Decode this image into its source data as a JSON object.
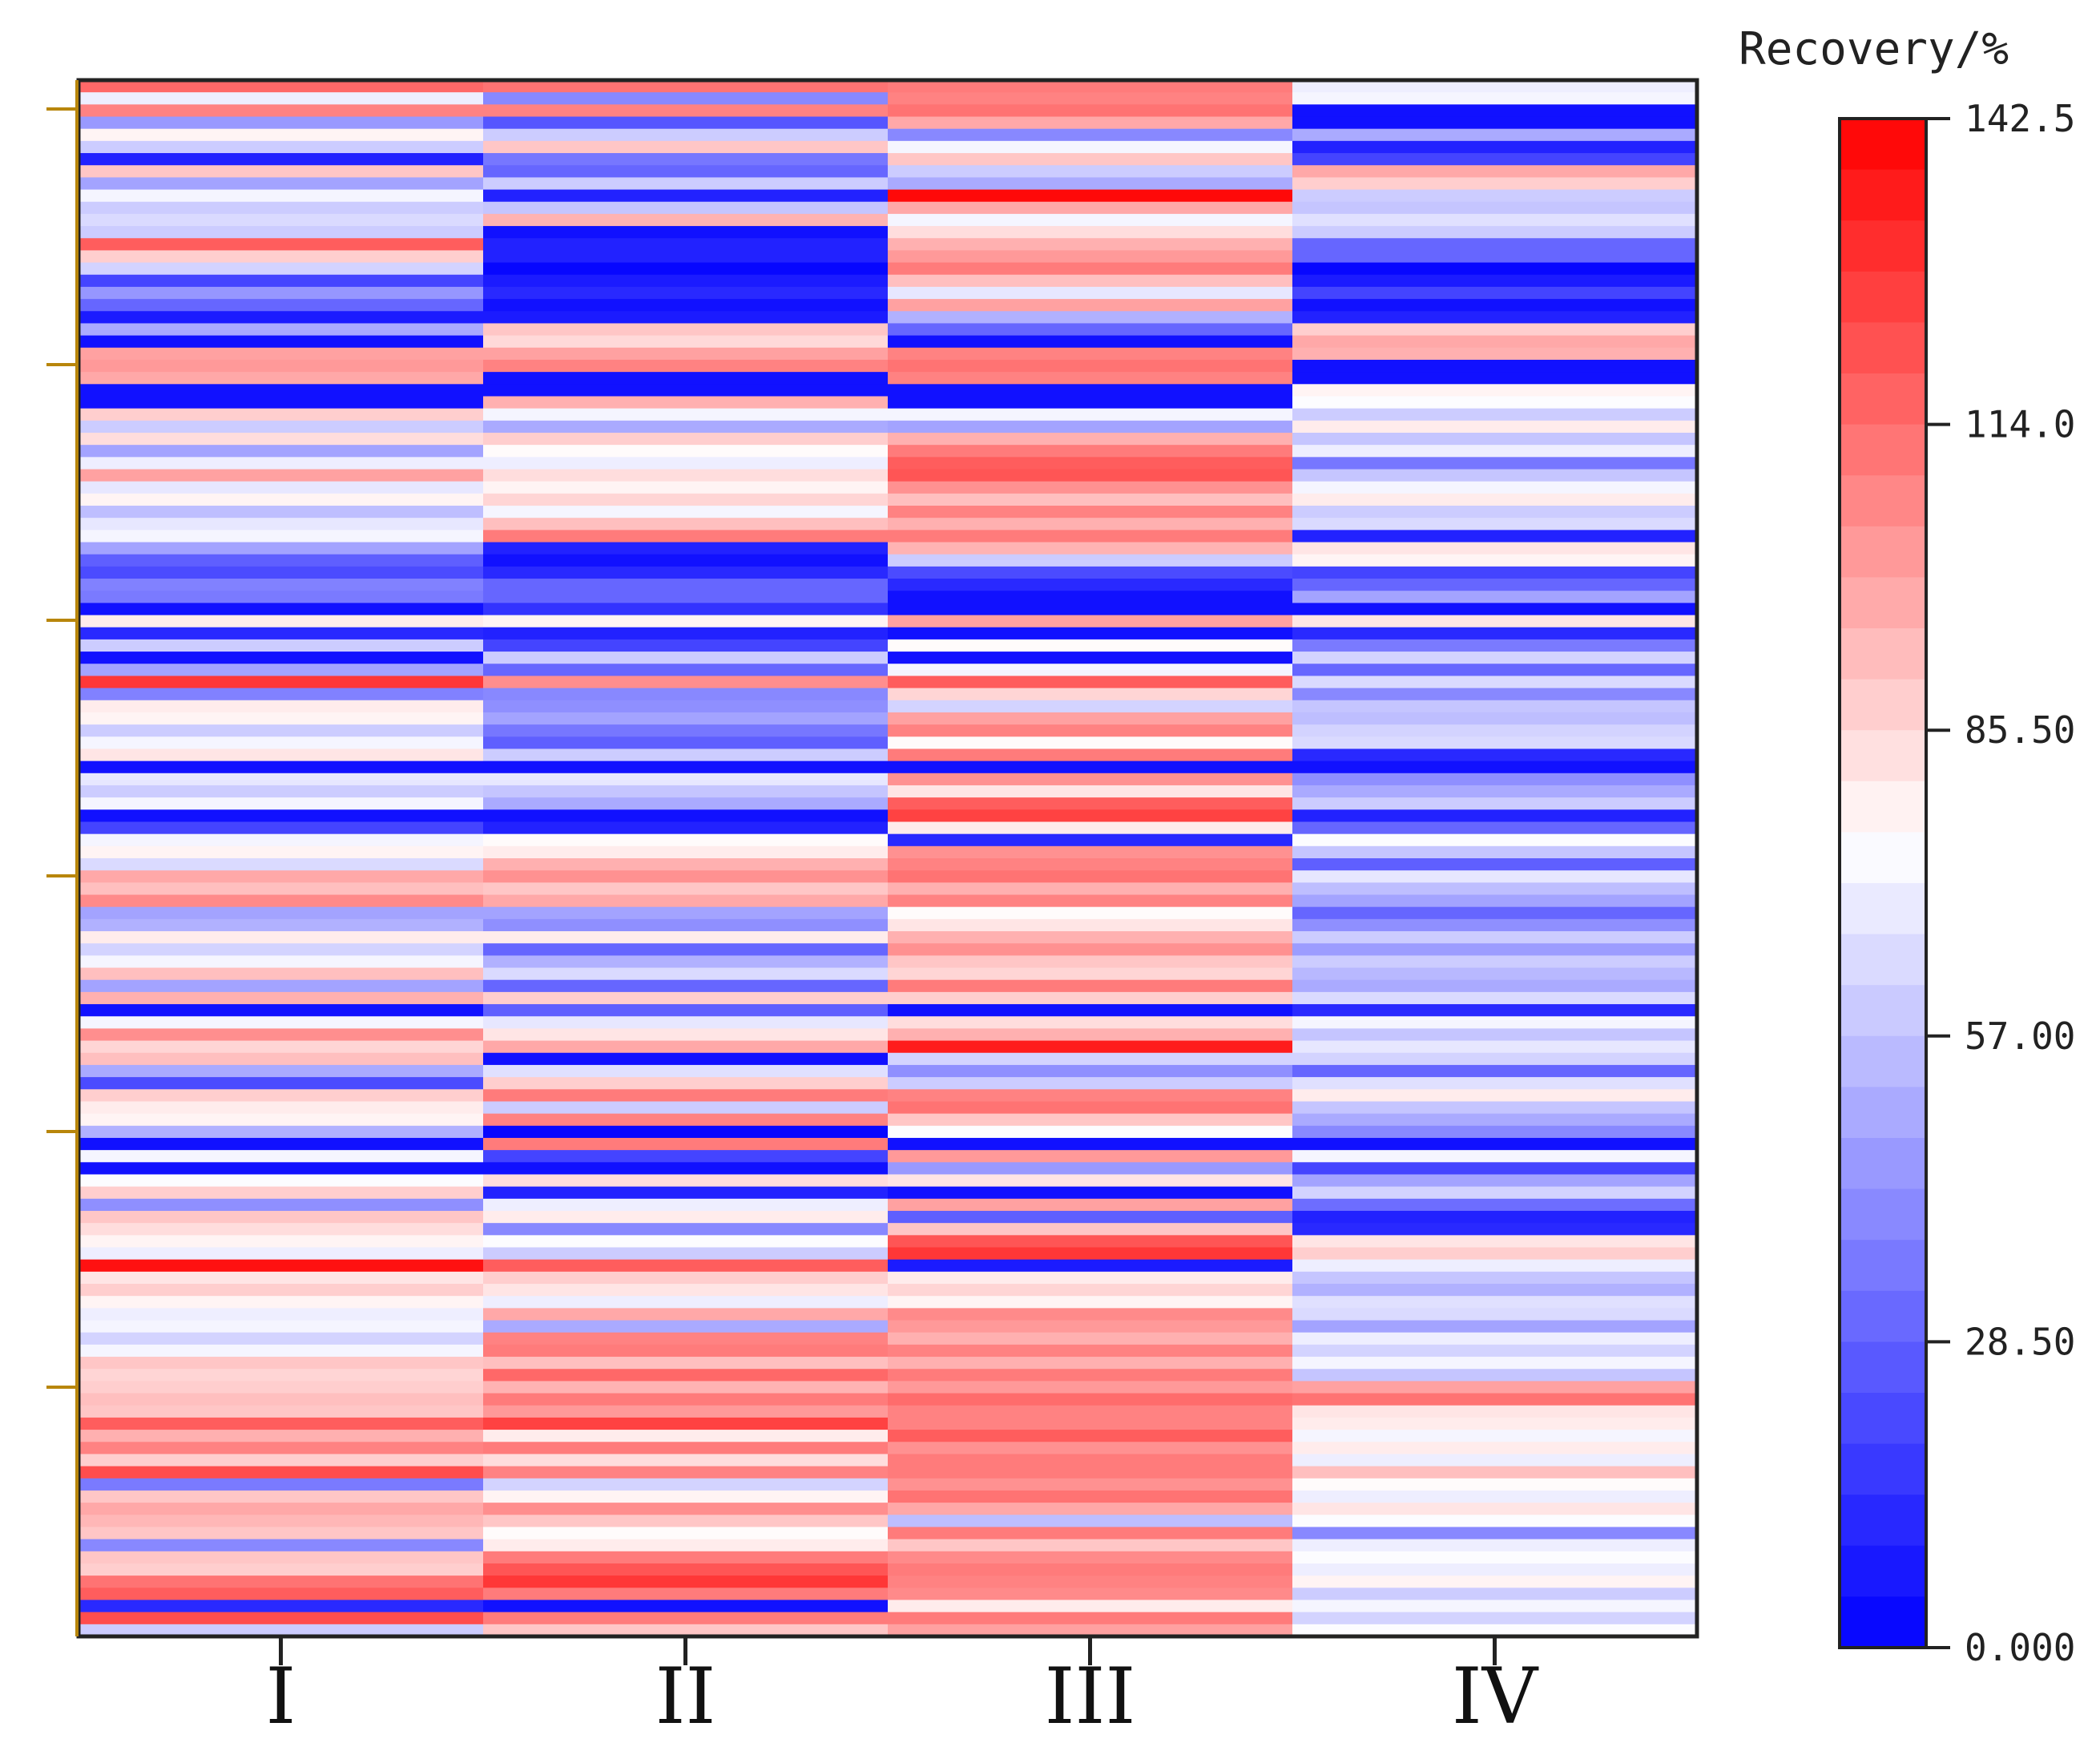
{
  "chart_data": {
    "type": "heatmap",
    "title": "",
    "xlabel": "",
    "ylabel": "",
    "categories": [
      "I",
      "II",
      "III",
      "IV"
    ],
    "colorbar": {
      "title": "Recovery/%",
      "min": 0.0,
      "max": 142.5,
      "ticks": [
        0.0,
        28.5,
        57.0,
        85.5,
        114.0,
        142.5
      ],
      "tick_labels": [
        "0.000",
        "28.50",
        "57.00",
        "85.50",
        "114.0",
        "142.5"
      ],
      "low_color": "#0000ff",
      "mid_color": "#ffffff",
      "high_color": "#ff0000",
      "mid_value": 75
    },
    "row_count": 128,
    "values": {
      "I": [
        115,
        70,
        108,
        45,
        78,
        60,
        10,
        90,
        48,
        72,
        60,
        64,
        60,
        118,
        88,
        62,
        20,
        44,
        30,
        8,
        50,
        5,
        100,
        102,
        98,
        5,
        5,
        88,
        60,
        84,
        48,
        70,
        100,
        68,
        78,
        56,
        68,
        72,
        48,
        28,
        22,
        38,
        36,
        5,
        80,
        12,
        60,
        5,
        48,
        128,
        38,
        80,
        78,
        60,
        72,
        82,
        5,
        68,
        60,
        72,
        5,
        20,
        72,
        78,
        64,
        98,
        92,
        106,
        48,
        52,
        80,
        62,
        72,
        92,
        48,
        96,
        5,
        72,
        105,
        86,
        92,
        50,
        22,
        88,
        80,
        78,
        52,
        5,
        72,
        5,
        74,
        88,
        42,
        90,
        84,
        78,
        70,
        138,
        82,
        88,
        78,
        70,
        72,
        62,
        72,
        90,
        86,
        88,
        92,
        90,
        118,
        96,
        108,
        88,
        122,
        36,
        90,
        98,
        94,
        90,
        40,
        90,
        88,
        112,
        118,
        12,
        122,
        60
      ],
      "II": [
        112,
        40,
        108,
        25,
        60,
        90,
        35,
        30,
        60,
        10,
        58,
        95,
        5,
        10,
        10,
        2,
        8,
        12,
        5,
        8,
        90,
        85,
        100,
        108,
        5,
        5,
        96,
        72,
        50,
        88,
        76,
        70,
        84,
        78,
        86,
        72,
        92,
        110,
        10,
        5,
        12,
        30,
        30,
        15,
        78,
        10,
        20,
        60,
        30,
        105,
        40,
        42,
        48,
        35,
        28,
        60,
        5,
        68,
        58,
        50,
        5,
        10,
        76,
        80,
        96,
        104,
        90,
        98,
        48,
        42,
        80,
        30,
        52,
        64,
        30,
        88,
        28,
        68,
        82,
        98,
        5,
        66,
        88,
        110,
        60,
        108,
        2,
        110,
        20,
        5,
        84,
        10,
        70,
        80,
        40,
        74,
        60,
        118,
        88,
        82,
        70,
        98,
        50,
        108,
        110,
        92,
        115,
        95,
        110,
        102,
        125,
        80,
        110,
        84,
        108,
        62,
        78,
        105,
        90,
        76,
        80,
        110,
        120,
        128,
        110,
        5,
        110,
        90
      ],
      "III": [
        110,
        108,
        112,
        98,
        40,
        72,
        90,
        60,
        50,
        140,
        98,
        72,
        84,
        96,
        102,
        110,
        92,
        68,
        100,
        52,
        30,
        5,
        108,
        112,
        108,
        5,
        5,
        72,
        48,
        96,
        110,
        118,
        120,
        104,
        92,
        108,
        96,
        110,
        95,
        60,
        22,
        12,
        5,
        5,
        100,
        5,
        76,
        5,
        72,
        118,
        86,
        62,
        100,
        108,
        76,
        110,
        5,
        104,
        82,
        118,
        125,
        80,
        12,
        104,
        108,
        112,
        96,
        108,
        76,
        82,
        96,
        104,
        90,
        86,
        110,
        88,
        5,
        84,
        96,
        135,
        62,
        42,
        60,
        108,
        112,
        90,
        74,
        5,
        102,
        45,
        82,
        5,
        100,
        28,
        90,
        120,
        128,
        8,
        80,
        86,
        78,
        106,
        102,
        96,
        108,
        96,
        110,
        102,
        114,
        108,
        108,
        118,
        104,
        110,
        110,
        104,
        112,
        98,
        56,
        110,
        90,
        106,
        110,
        108,
        106,
        80,
        110,
        100
      ],
      "IV": [
        70,
        72,
        5,
        5,
        50,
        10,
        20,
        98,
        88,
        60,
        58,
        66,
        60,
        30,
        30,
        2,
        8,
        20,
        5,
        10,
        88,
        98,
        96,
        5,
        5,
        78,
        74,
        60,
        80,
        58,
        70,
        35,
        58,
        72,
        80,
        60,
        64,
        10,
        82,
        78,
        20,
        30,
        48,
        5,
        82,
        12,
        36,
        62,
        30,
        64,
        40,
        58,
        56,
        62,
        64,
        12,
        5,
        42,
        50,
        60,
        10,
        30,
        74,
        58,
        28,
        68,
        56,
        48,
        30,
        42,
        60,
        46,
        60,
        54,
        50,
        64,
        12,
        72,
        58,
        68,
        62,
        30,
        66,
        80,
        58,
        50,
        40,
        5,
        72,
        20,
        48,
        62,
        32,
        10,
        12,
        82,
        88,
        70,
        58,
        52,
        66,
        64,
        48,
        70,
        62,
        72,
        58,
        100,
        112,
        82,
        80,
        72,
        80,
        70,
        92,
        76,
        70,
        82,
        74,
        40,
        70,
        74,
        70,
        78,
        60,
        72,
        62,
        74
      ]
    }
  }
}
